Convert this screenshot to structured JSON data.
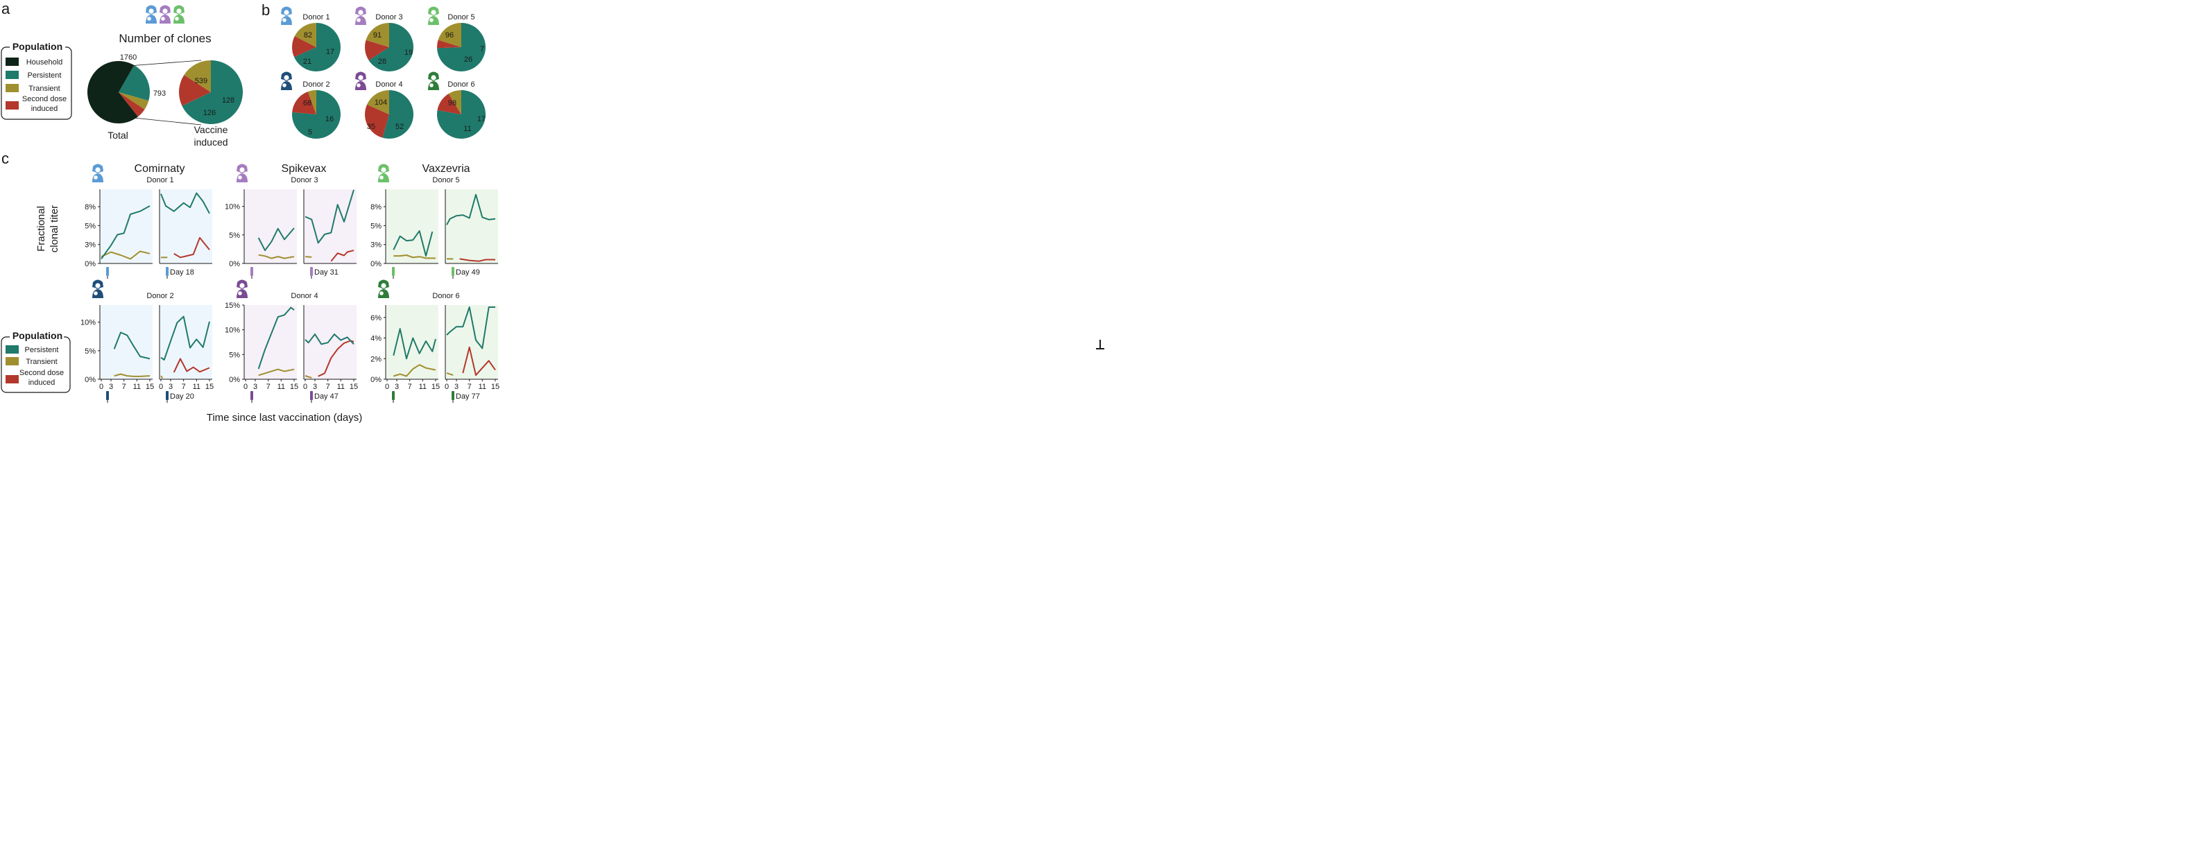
{
  "colors": {
    "household": "#0e2418",
    "persistent": "#1f7a6b",
    "transient": "#a08f2e",
    "second_dose": "#b3382c",
    "blue": "#5b9bd5",
    "purple": "#a57cc0",
    "green": "#6cc06a",
    "dark_blue": "#1f4e79",
    "dark_purple": "#7b4b94",
    "dark_green": "#2e7d3a",
    "bg_blue": "#eef6fd",
    "bg_purple": "#f6f0f8",
    "bg_green": "#edf6ea"
  },
  "panel_a": {
    "letter": "a",
    "title": "Number of clones",
    "legend_title": "Population",
    "legend_items": [
      {
        "label": "Household",
        "color_key": "household"
      },
      {
        "label": "Persistent",
        "color_key": "persistent"
      },
      {
        "label": "Transient",
        "color_key": "transient"
      },
      {
        "label": "Second dose induced",
        "color_key": "second_dose"
      }
    ],
    "total_label": "Total",
    "vaccine_label_1": "Vaccine",
    "vaccine_label_2": "induced",
    "total_values": {
      "household": "1760",
      "vaccine": "793"
    },
    "vaccine_values": {
      "persistent": "539",
      "transient": "126",
      "second_dose": "128"
    }
  },
  "panel_b": {
    "letter": "b",
    "donors": [
      {
        "label": "Donor 1",
        "icon_color": "blue",
        "persistent": "82",
        "transient": "21",
        "second_dose": "17"
      },
      {
        "label": "Donor 3",
        "icon_color": "purple",
        "persistent": "91",
        "transient": "28",
        "second_dose": "19"
      },
      {
        "label": "Donor 5",
        "icon_color": "green",
        "persistent": "96",
        "transient": "26",
        "second_dose": "7"
      },
      {
        "label": "Donor 2",
        "icon_color": "dark_blue",
        "persistent": "68",
        "transient": "5",
        "second_dose": "16"
      },
      {
        "label": "Donor 4",
        "icon_color": "dark_purple",
        "persistent": "104",
        "transient": "35",
        "second_dose": "52"
      },
      {
        "label": "Donor 6",
        "icon_color": "dark_green",
        "persistent": "98",
        "transient": "11",
        "second_dose": "17"
      }
    ]
  },
  "panel_c": {
    "letter": "c",
    "ylabel_1": "Fractional",
    "ylabel_2": "clonal titer",
    "xlabel": "Time since last vaccination (days)",
    "legend_title": "Population",
    "legend_items": [
      {
        "label": "Persistent",
        "color_key": "persistent"
      },
      {
        "label": "Transient",
        "color_key": "transient"
      },
      {
        "label": "Second dose induced",
        "color_key": "second_dose"
      }
    ],
    "vaccines": [
      "Comirnaty",
      "Spikevax",
      "Vaxzevria"
    ]
  },
  "chart_data": [
    {
      "type": "pie",
      "title": "Number of clones",
      "name": "Total",
      "categories": [
        "Household",
        "Vaccine induced"
      ],
      "values": [
        1760,
        793
      ]
    },
    {
      "type": "pie",
      "name": "Vaccine induced",
      "categories": [
        "Persistent",
        "Transient",
        "Second dose induced"
      ],
      "values": [
        539,
        126,
        128
      ]
    },
    {
      "type": "pie",
      "name": "Donor pies",
      "categories": [
        "Persistent",
        "Transient",
        "Second dose induced"
      ],
      "donors": [
        {
          "donor": "Donor 1",
          "values": [
            82,
            21,
            17
          ]
        },
        {
          "donor": "Donor 3",
          "values": [
            91,
            28,
            19
          ]
        },
        {
          "donor": "Donor 5",
          "values": [
            96,
            26,
            7
          ]
        },
        {
          "donor": "Donor 2",
          "values": [
            68,
            5,
            16
          ]
        },
        {
          "donor": "Donor 4",
          "values": [
            104,
            35,
            52
          ]
        },
        {
          "donor": "Donor 6",
          "values": [
            98,
            11,
            17
          ]
        }
      ]
    },
    {
      "type": "line",
      "xlabel": "Time since last vaccination (days)",
      "ylabel": "Fractional clonal titer",
      "xticks": [
        0,
        3,
        7,
        11,
        15
      ],
      "panels": [
        {
          "vaccine": "Comirnaty",
          "donor": "Donor 1",
          "day_label": "Day 18",
          "color": "blue",
          "ylim": [
            0,
            9.8
          ],
          "yticks": [
            0,
            2.5,
            5,
            7.5
          ],
          "ytick_labels": [
            "0%",
            "3%",
            "5%",
            "8%"
          ],
          "dose1": {
            "persistent": {
              "x": [
                0,
                3,
                5,
                7,
                9,
                12,
                15
              ],
              "y": [
                0.6,
                2.4,
                3.8,
                4.0,
                6.5,
                6.9,
                7.6
              ]
            },
            "transient": {
              "x": [
                0,
                3,
                6,
                9,
                12,
                15
              ],
              "y": [
                0.9,
                1.5,
                1.1,
                0.6,
                1.6,
                1.3
              ]
            }
          },
          "dose2": {
            "persistent": {
              "x": [
                0,
                1.5,
                4,
                7,
                9,
                11,
                13,
                15
              ],
              "y": [
                9.2,
                7.6,
                6.9,
                8.0,
                7.4,
                9.3,
                8.2,
                6.6
              ]
            },
            "transient": {
              "x": [
                0,
                2
              ],
              "y": [
                0.8,
                0.8
              ]
            },
            "second_dose": {
              "x": [
                4,
                6,
                8,
                10,
                12,
                15
              ],
              "y": [
                1.3,
                0.8,
                1.0,
                1.2,
                3.4,
                1.8
              ]
            }
          }
        },
        {
          "vaccine": "Spikevax",
          "donor": "Donor 3",
          "day_label": "Day 31",
          "color": "purple",
          "ylim": [
            0,
            13
          ],
          "yticks": [
            0,
            5,
            10
          ],
          "ytick_labels": [
            "0%",
            "5%",
            "10%"
          ],
          "dose1": {
            "persistent": {
              "x": [
                4,
                6,
                8,
                10,
                12,
                15
              ],
              "y": [
                4.5,
                2.3,
                3.8,
                6.1,
                4.2,
                6.2
              ]
            },
            "transient": {
              "x": [
                4,
                6,
                8,
                10,
                12,
                15
              ],
              "y": [
                1.5,
                1.3,
                0.9,
                1.2,
                0.9,
                1.2
              ]
            }
          },
          "dose2": {
            "persistent": {
              "x": [
                0,
                2,
                4,
                6,
                8,
                10,
                12,
                15
              ],
              "y": [
                8.2,
                7.7,
                3.6,
                5.1,
                5.4,
                10.3,
                7.3,
                12.9
              ]
            },
            "transient": {
              "x": [
                0,
                2
              ],
              "y": [
                1.2,
                1.1
              ]
            },
            "second_dose": {
              "x": [
                8,
                10,
                12,
                13,
                15
              ],
              "y": [
                0.4,
                1.8,
                1.4,
                2.0,
                2.3
              ]
            }
          }
        },
        {
          "vaccine": "Vaxzevria",
          "donor": "Donor 5",
          "day_label": "Day 49",
          "color": "green",
          "ylim": [
            0,
            9.8
          ],
          "yticks": [
            0,
            2.5,
            5,
            7.5
          ],
          "ytick_labels": [
            "0%",
            "3%",
            "5%",
            "8%"
          ],
          "dose1": {
            "persistent": {
              "x": [
                2,
                4,
                6,
                8,
                10,
                12,
                14
              ],
              "y": [
                1.8,
                3.6,
                3.0,
                3.1,
                4.3,
                1.0,
                4.2
              ]
            },
            "transient": {
              "x": [
                2,
                4,
                6,
                8,
                10,
                12,
                15
              ],
              "y": [
                1.0,
                1.0,
                1.1,
                0.8,
                0.9,
                0.7,
                0.7
              ]
            }
          },
          "dose2": {
            "persistent": {
              "x": [
                0,
                1,
                3,
                5,
                7,
                9,
                11,
                13,
                15
              ],
              "y": [
                5.1,
                5.9,
                6.3,
                6.4,
                6.0,
                9.1,
                6.1,
                5.8,
                5.9
              ]
            },
            "transient": {
              "x": [
                0,
                2
              ],
              "y": [
                0.6,
                0.6
              ]
            },
            "second_dose": {
              "x": [
                4,
                7,
                10,
                12,
                15
              ],
              "y": [
                0.6,
                0.4,
                0.3,
                0.5,
                0.5
              ]
            }
          }
        },
        {
          "vaccine": "Comirnaty",
          "donor": "Donor 2",
          "day_label": "Day 20",
          "color": "dark_blue",
          "ylim": [
            0,
            13
          ],
          "yticks": [
            0,
            5,
            10
          ],
          "ytick_labels": [
            "0%",
            "5%",
            "10%"
          ],
          "dose1": {
            "persistent": {
              "x": [
                4,
                6,
                8,
                10,
                12,
                15
              ],
              "y": [
                5.3,
                8.2,
                7.7,
                5.8,
                4.0,
                3.6
              ]
            },
            "transient": {
              "x": [
                4,
                6,
                8,
                10,
                12,
                15
              ],
              "y": [
                0.6,
                0.9,
                0.6,
                0.5,
                0.5,
                0.6
              ]
            }
          },
          "dose2": {
            "persistent": {
              "x": [
                0,
                1,
                3,
                5,
                7,
                9,
                11,
                13,
                15
              ],
              "y": [
                3.8,
                3.4,
                6.7,
                9.9,
                11.0,
                5.5,
                7.0,
                5.6,
                10.1
              ]
            },
            "transient": {
              "x": [
                0,
                0.5
              ],
              "y": [
                0.6,
                0.2
              ]
            },
            "second_dose": {
              "x": [
                4,
                6,
                8,
                10,
                12,
                15
              ],
              "y": [
                1.2,
                3.6,
                1.4,
                2.1,
                1.3,
                2.0
              ]
            }
          }
        },
        {
          "vaccine": "Spikevax",
          "donor": "Donor 4",
          "day_label": "Day 47",
          "color": "dark_purple",
          "ylim": [
            0,
            15
          ],
          "yticks": [
            0,
            5,
            10,
            15
          ],
          "ytick_labels": [
            "0%",
            "5%",
            "10%",
            "15%"
          ],
          "dose1": {
            "persistent": {
              "x": [
                4,
                6,
                8,
                10,
                12,
                14,
                15
              ],
              "y": [
                2.1,
                6.0,
                9.3,
                12.6,
                13.0,
                14.5,
                14.0
              ]
            },
            "transient": {
              "x": [
                4,
                6,
                8,
                10,
                12,
                15
              ],
              "y": [
                0.8,
                1.2,
                1.6,
                2.0,
                1.6,
                2.0
              ]
            }
          },
          "dose2": {
            "persistent": {
              "x": [
                0,
                1,
                3,
                5,
                7,
                9,
                11,
                13,
                15
              ],
              "y": [
                8.0,
                7.4,
                9.1,
                7.1,
                7.4,
                9.1,
                7.9,
                8.5,
                7.1
              ]
            },
            "transient": {
              "x": [
                0,
                2
              ],
              "y": [
                0.7,
                0.3
              ]
            },
            "second_dose": {
              "x": [
                4,
                6,
                8,
                10,
                12,
                14,
                15
              ],
              "y": [
                0.6,
                1.2,
                4.3,
                6.1,
                7.3,
                7.8,
                7.6
              ]
            }
          }
        },
        {
          "vaccine": "Vaxzevria",
          "donor": "Donor 6",
          "day_label": "Day 77",
          "color": "dark_green",
          "ylim": [
            0,
            7.2
          ],
          "yticks": [
            0,
            2,
            4,
            6
          ],
          "ytick_labels": [
            "0%",
            "2%",
            "4%",
            "6%"
          ],
          "dose1": {
            "persistent": {
              "x": [
                2,
                4,
                6,
                8,
                10,
                12,
                14,
                15
              ],
              "y": [
                2.3,
                4.9,
                2.0,
                4.0,
                2.5,
                3.7,
                2.7,
                3.9
              ]
            },
            "transient": {
              "x": [
                2,
                4,
                6,
                8,
                10,
                12,
                15
              ],
              "y": [
                0.3,
                0.5,
                0.3,
                1.0,
                1.4,
                1.1,
                0.9
              ]
            }
          },
          "dose2": {
            "persistent": {
              "x": [
                0,
                1,
                3,
                5,
                7,
                9,
                11,
                13,
                15
              ],
              "y": [
                4.3,
                4.6,
                5.1,
                5.1,
                7.0,
                3.8,
                3.0,
                7.0,
                7.0
              ]
            },
            "transient": {
              "x": [
                0,
                2
              ],
              "y": [
                0.6,
                0.4
              ]
            },
            "second_dose": {
              "x": [
                5,
                7,
                9,
                11,
                13,
                15
              ],
              "y": [
                0.6,
                3.1,
                0.4,
                1.1,
                1.8,
                0.9
              ]
            }
          }
        }
      ]
    }
  ]
}
